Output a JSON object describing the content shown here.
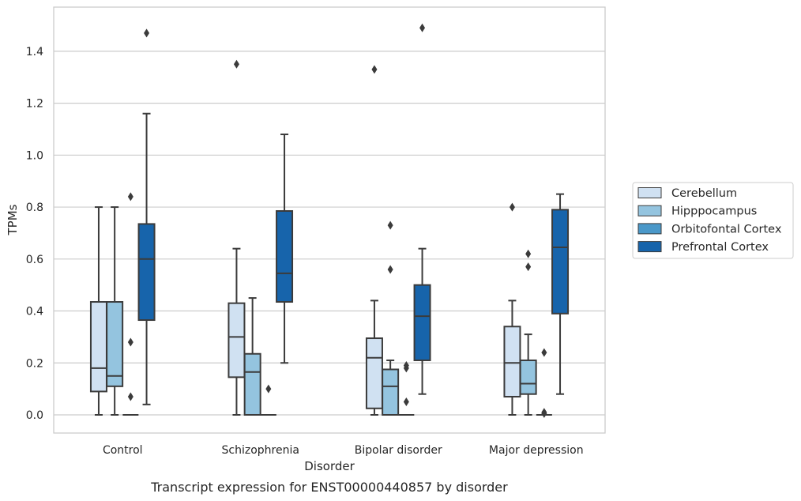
{
  "chart_data": {
    "type": "box",
    "caption": "Transcript expression for ENST00000440857 by disorder",
    "xlabel": "Disorder",
    "ylabel": "TPMs",
    "ylim": [
      -0.07,
      1.57
    ],
    "yticks": [
      "0.0",
      "0.2",
      "0.4",
      "0.6",
      "0.8",
      "1.0",
      "1.2",
      "1.4"
    ],
    "categories": [
      "Control",
      "Schizophrenia",
      "Bipolar disorder",
      "Major depression"
    ],
    "grid": "horizontal",
    "legend_position": "right",
    "series": [
      {
        "name": "Cerebellum",
        "color": "#d0e1f2",
        "boxes": [
          {
            "whislo": 0.0,
            "q1": 0.09,
            "med": 0.18,
            "q3": 0.435,
            "whishi": 0.8,
            "fliers": []
          },
          {
            "whislo": 0.0,
            "q1": 0.145,
            "med": 0.3,
            "q3": 0.43,
            "whishi": 0.64,
            "fliers": [
              1.35
            ]
          },
          {
            "whislo": 0.0,
            "q1": 0.025,
            "med": 0.22,
            "q3": 0.295,
            "whishi": 0.44,
            "fliers": [
              1.33
            ]
          },
          {
            "whislo": 0.0,
            "q1": 0.07,
            "med": 0.2,
            "q3": 0.34,
            "whishi": 0.44,
            "fliers": [
              0.8
            ]
          }
        ]
      },
      {
        "name": "Hipppocampus",
        "color": "#94c4df",
        "boxes": [
          {
            "whislo": 0.0,
            "q1": 0.11,
            "med": 0.15,
            "q3": 0.435,
            "whishi": 0.8,
            "fliers": []
          },
          {
            "whislo": 0.0,
            "q1": 0.0,
            "med": 0.165,
            "q3": 0.235,
            "whishi": 0.45,
            "fliers": []
          },
          {
            "whislo": 0.0,
            "q1": 0.0,
            "med": 0.11,
            "q3": 0.175,
            "whishi": 0.21,
            "fliers": [
              0.73,
              0.56
            ]
          },
          {
            "whislo": 0.0,
            "q1": 0.08,
            "med": 0.12,
            "q3": 0.21,
            "whishi": 0.31,
            "fliers": [
              0.62,
              0.57
            ]
          }
        ]
      },
      {
        "name": "Orbitofontal Cortex",
        "color": "#4a98c9",
        "boxes": [
          {
            "whislo": 0.0,
            "q1": 0.0,
            "med": 0.0,
            "q3": 0.0,
            "whishi": 0.0,
            "fliers": [
              0.84,
              0.28,
              0.07
            ]
          },
          {
            "whislo": 0.0,
            "q1": 0.0,
            "med": 0.0,
            "q3": 0.0,
            "whishi": 0.0,
            "fliers": [
              0.1
            ]
          },
          {
            "whislo": 0.0,
            "q1": 0.0,
            "med": 0.0,
            "q3": 0.0,
            "whishi": 0.0,
            "fliers": [
              0.19,
              0.18,
              0.05
            ]
          },
          {
            "whislo": 0.0,
            "q1": 0.0,
            "med": 0.0,
            "q3": 0.0,
            "whishi": 0.0,
            "fliers": [
              0.24,
              0.01,
              0.005
            ]
          }
        ]
      },
      {
        "name": "Prefrontal Cortex",
        "color": "#1764ab",
        "boxes": [
          {
            "whislo": 0.04,
            "q1": 0.365,
            "med": 0.6,
            "q3": 0.735,
            "whishi": 1.16,
            "fliers": [
              1.47
            ]
          },
          {
            "whislo": 0.2,
            "q1": 0.435,
            "med": 0.545,
            "q3": 0.785,
            "whishi": 1.08,
            "fliers": []
          },
          {
            "whislo": 0.08,
            "q1": 0.21,
            "med": 0.38,
            "q3": 0.5,
            "whishi": 0.64,
            "fliers": [
              1.49
            ]
          },
          {
            "whislo": 0.08,
            "q1": 0.39,
            "med": 0.645,
            "q3": 0.79,
            "whishi": 0.85,
            "fliers": []
          }
        ]
      }
    ]
  }
}
